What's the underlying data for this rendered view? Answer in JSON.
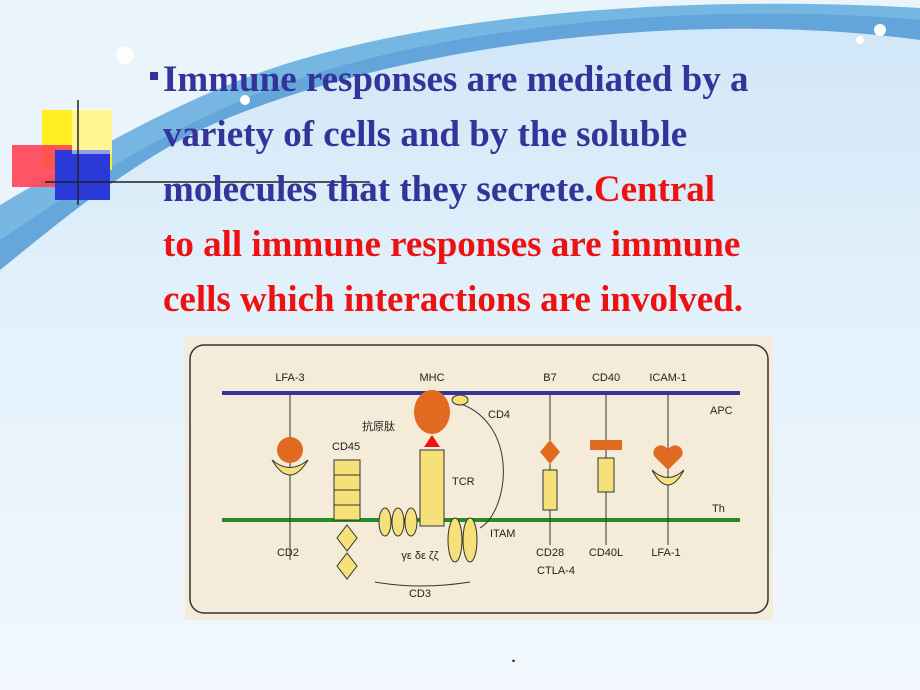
{
  "bullet": {
    "blue": [
      "Immune responses are mediated by a",
      "variety of cells and by the soluble",
      "molecules that they secrete."
    ],
    "red": [
      "Central",
      "to all immune responses are immune",
      "cells which interactions are involved."
    ]
  },
  "diagram": {
    "labels": {
      "lfa3": "LFA-3",
      "mhc": "MHC",
      "b7": "B7",
      "cd40": "CD40",
      "icam1": "ICAM-1",
      "apc": "APC",
      "antigen": "抗原肽",
      "cd4": "CD4",
      "cd45": "CD45",
      "tcr": "TCR",
      "th": "Th",
      "itam": "ITAM",
      "cd2": "CD2",
      "chains": "γε δε ζζ",
      "cd3": "CD3",
      "cd28": "CD28",
      "ctla4": "CTLA-4",
      "cd40l": "CD40L",
      "lfa1": "LFA-1"
    }
  },
  "footer": "."
}
